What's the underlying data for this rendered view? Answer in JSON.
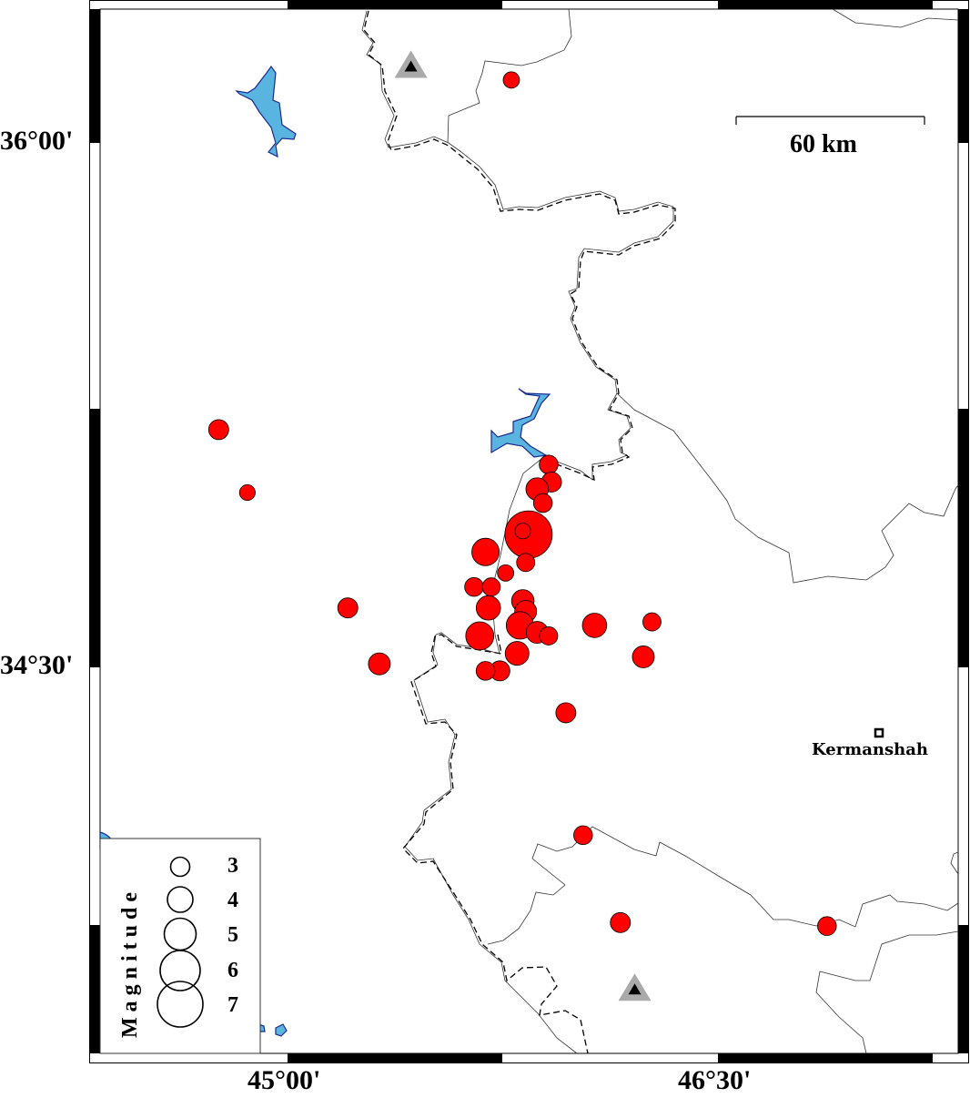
{
  "map": {
    "axes": {
      "lat_labels": [
        "36°00'",
        "34°30'"
      ],
      "lon_labels": [
        "45°00'",
        "46°30'"
      ]
    },
    "scale_bar": {
      "label": "60 km"
    },
    "city": {
      "name": "Kermanshah",
      "lon": 47.06,
      "lat": 34.31
    },
    "legend": {
      "title": "Magnitude",
      "magnitudes": [
        "3",
        "4",
        "5",
        "6",
        "7"
      ]
    },
    "colors": {
      "epicenter": "#ff0000",
      "water": "#5ab4e0",
      "water_outline": "#1a2a8a",
      "station_outer": "#aaaaaa",
      "station_inner": "#000000"
    },
    "stations": [
      {
        "lon": 45.43,
        "lat": 36.22
      },
      {
        "lon": 46.21,
        "lat": 33.58
      }
    ],
    "epicenters": [
      {
        "lon": 45.78,
        "lat": 36.18,
        "mag": 2.2
      },
      {
        "lon": 44.76,
        "lat": 35.18,
        "mag": 2.8
      },
      {
        "lon": 44.86,
        "lat": 35.0,
        "mag": 2.1
      },
      {
        "lon": 45.91,
        "lat": 35.08,
        "mag": 2.6
      },
      {
        "lon": 45.92,
        "lat": 35.03,
        "mag": 2.8
      },
      {
        "lon": 45.87,
        "lat": 35.01,
        "mag": 3.2
      },
      {
        "lon": 45.89,
        "lat": 34.97,
        "mag": 2.6
      },
      {
        "lon": 45.84,
        "lat": 34.88,
        "mag": 7.2
      },
      {
        "lon": 45.82,
        "lat": 34.89,
        "mag": 2.1
      },
      {
        "lon": 45.69,
        "lat": 34.83,
        "mag": 4.0
      },
      {
        "lon": 45.83,
        "lat": 34.8,
        "mag": 2.5
      },
      {
        "lon": 45.76,
        "lat": 34.77,
        "mag": 2.2
      },
      {
        "lon": 45.65,
        "lat": 34.73,
        "mag": 2.6
      },
      {
        "lon": 45.71,
        "lat": 34.73,
        "mag": 2.5
      },
      {
        "lon": 45.7,
        "lat": 34.67,
        "mag": 3.5
      },
      {
        "lon": 45.82,
        "lat": 34.69,
        "mag": 3.2
      },
      {
        "lon": 45.83,
        "lat": 34.66,
        "mag": 3.1
      },
      {
        "lon": 45.21,
        "lat": 34.67,
        "mag": 2.8
      },
      {
        "lon": 45.81,
        "lat": 34.62,
        "mag": 4.0
      },
      {
        "lon": 45.87,
        "lat": 34.6,
        "mag": 3.1
      },
      {
        "lon": 45.91,
        "lat": 34.59,
        "mag": 2.5
      },
      {
        "lon": 45.67,
        "lat": 34.59,
        "mag": 4.1
      },
      {
        "lon": 46.07,
        "lat": 34.62,
        "mag": 3.5
      },
      {
        "lon": 46.27,
        "lat": 34.63,
        "mag": 2.5
      },
      {
        "lon": 45.8,
        "lat": 34.54,
        "mag": 3.4
      },
      {
        "lon": 46.24,
        "lat": 34.53,
        "mag": 3.1
      },
      {
        "lon": 45.32,
        "lat": 34.51,
        "mag": 3.1
      },
      {
        "lon": 45.74,
        "lat": 34.49,
        "mag": 2.8
      },
      {
        "lon": 45.69,
        "lat": 34.49,
        "mag": 2.6
      },
      {
        "lon": 45.97,
        "lat": 34.37,
        "mag": 2.8
      },
      {
        "lon": 46.03,
        "lat": 34.02,
        "mag": 2.6
      },
      {
        "lon": 46.16,
        "lat": 33.77,
        "mag": 2.8
      },
      {
        "lon": 46.88,
        "lat": 33.76,
        "mag": 2.6
      }
    ]
  }
}
